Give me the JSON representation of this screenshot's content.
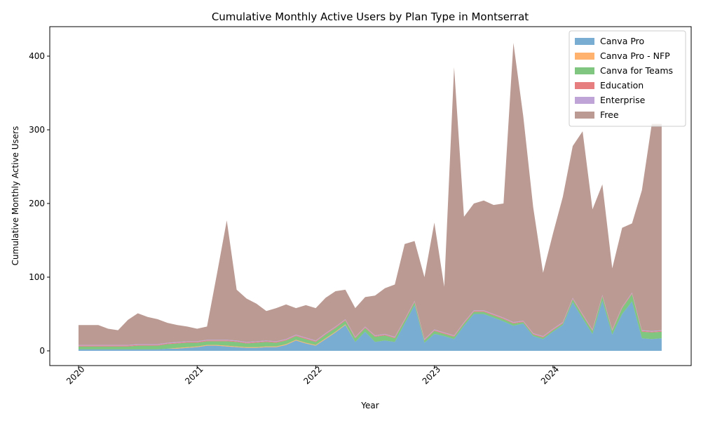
{
  "chart_data": {
    "type": "area",
    "stacked": true,
    "title": "Cumulative Monthly Active Users by Plan Type in Montserrat",
    "xlabel": "Year",
    "ylabel": "Cumulative Monthly Active Users",
    "x_start": "2020-01",
    "x_end": "2024-12",
    "xticks": [
      "2020",
      "2021",
      "2022",
      "2023",
      "2024"
    ],
    "yticks": [
      0,
      100,
      200,
      300,
      400
    ],
    "ylim": [
      -20,
      440
    ],
    "legend_position": "top-right",
    "grid": false,
    "series": [
      {
        "name": "Canva Pro",
        "color": "#1f77b4",
        "values": [
          2,
          2,
          2,
          2,
          2,
          2,
          2,
          2,
          2,
          3,
          3,
          4,
          5,
          7,
          7,
          6,
          5,
          4,
          4,
          5,
          5,
          8,
          14,
          10,
          7,
          16,
          25,
          35,
          12,
          26,
          12,
          14,
          12,
          37,
          62,
          11,
          23,
          20,
          16,
          34,
          50,
          50,
          45,
          40,
          34,
          37,
          20,
          16,
          26,
          35,
          66,
          44,
          23,
          68,
          22,
          50,
          67,
          17,
          16,
          17
        ]
      },
      {
        "name": "Canva Pro - NFP",
        "color": "#ff7f0e",
        "values": [
          0,
          0,
          0,
          0,
          0,
          0,
          0,
          0,
          0,
          0,
          1,
          1,
          1,
          1,
          1,
          1,
          1,
          1,
          1,
          1,
          1,
          1,
          1,
          1,
          1,
          1,
          1,
          1,
          0,
          0,
          0,
          0,
          0,
          0,
          0,
          0,
          0,
          0,
          0,
          0,
          0,
          0,
          0,
          0,
          0,
          0,
          0,
          0,
          0,
          0,
          0,
          0,
          0,
          0,
          0,
          0,
          0,
          0,
          0,
          0
        ]
      },
      {
        "name": "Canva for Teams",
        "color": "#2ca02c",
        "values": [
          4,
          4,
          4,
          4,
          4,
          4,
          5,
          5,
          5,
          6,
          6,
          6,
          5,
          5,
          5,
          6,
          6,
          5,
          6,
          6,
          5,
          5,
          5,
          5,
          4,
          5,
          5,
          5,
          5,
          5,
          7,
          7,
          5,
          4,
          4,
          3,
          4,
          3,
          3,
          3,
          3,
          3,
          3,
          3,
          3,
          2,
          2,
          2,
          2,
          2,
          4,
          4,
          4,
          6,
          5,
          8,
          10,
          9,
          9,
          9
        ]
      },
      {
        "name": "Education",
        "color": "#d62728",
        "values": [
          1,
          1,
          1,
          1,
          1,
          1,
          1,
          1,
          1,
          1,
          1,
          1,
          1,
          1,
          1,
          1,
          1,
          1,
          1,
          1,
          1,
          1,
          1,
          1,
          1,
          1,
          1,
          1,
          1,
          1,
          1,
          1,
          1,
          1,
          1,
          1,
          1,
          1,
          1,
          1,
          1,
          1,
          1,
          1,
          1,
          1,
          1,
          1,
          1,
          1,
          1,
          1,
          1,
          1,
          1,
          1,
          1,
          1,
          1,
          1
        ]
      },
      {
        "name": "Enterprise",
        "color": "#9467bd",
        "values": [
          1,
          1,
          1,
          1,
          1,
          1,
          1,
          1,
          1,
          1,
          1,
          1,
          1,
          1,
          1,
          1,
          1,
          1,
          1,
          1,
          1,
          1,
          1,
          1,
          1,
          1,
          1,
          1,
          1,
          1,
          1,
          1,
          1,
          1,
          1,
          1,
          1,
          1,
          1,
          1,
          1,
          1,
          1,
          1,
          1,
          1,
          1,
          1,
          1,
          1,
          1,
          1,
          1,
          1,
          1,
          1,
          1,
          1,
          1,
          1
        ]
      },
      {
        "name": "Free",
        "color": "#8c564b",
        "values": [
          27,
          27,
          27,
          22,
          20,
          34,
          42,
          37,
          34,
          27,
          23,
          20,
          17,
          18,
          89,
          162,
          69,
          59,
          51,
          40,
          45,
          47,
          36,
          44,
          44,
          48,
          48,
          40,
          39,
          40,
          54,
          62,
          71,
          102,
          81,
          84,
          145,
          62,
          364,
          143,
          145,
          149,
          148,
          155,
          379,
          277,
          171,
          86,
          129,
          170,
          206,
          248,
          163,
          150,
          83,
          107,
          94,
          190,
          281,
          280
        ]
      }
    ]
  }
}
